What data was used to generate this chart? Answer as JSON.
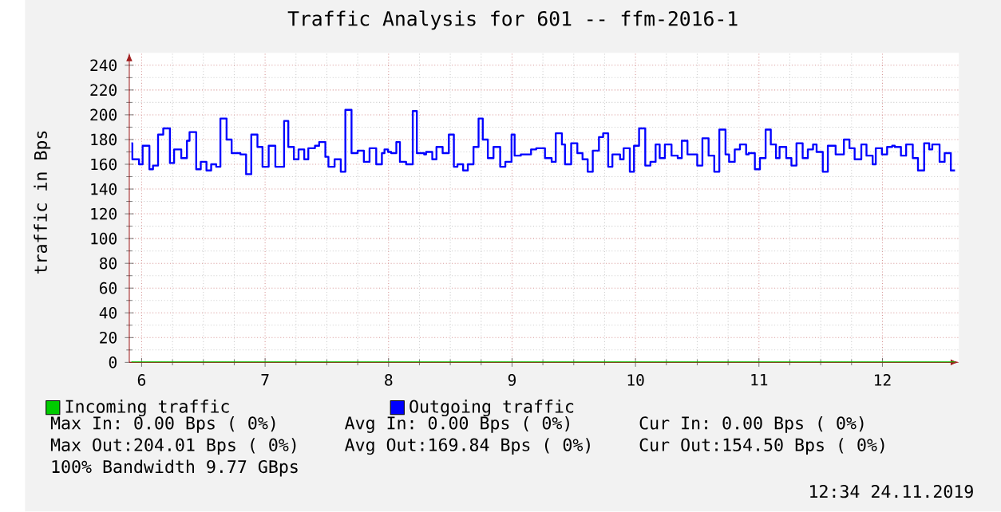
{
  "chart_data": {
    "type": "step",
    "title": "Traffic Analysis for 601 -- ffm-2016-1",
    "ylabel": "traffic in Bps",
    "xlim": [
      5.9,
      12.62
    ],
    "ylim": [
      0,
      250
    ],
    "xticks": [
      6,
      7,
      8,
      9,
      10,
      11,
      12
    ],
    "yticks": [
      0,
      20,
      40,
      60,
      80,
      100,
      120,
      140,
      160,
      180,
      200,
      220,
      240
    ],
    "grid": true,
    "legend": "bottom",
    "series": [
      {
        "name": "Incoming traffic",
        "color": "#00cc00",
        "x": [
          5.917,
          12.588
        ],
        "values": [
          0,
          0
        ]
      },
      {
        "name": "Outgoing traffic",
        "color": "#0000ff",
        "x": [
          5.917,
          5.925,
          5.979,
          6.008,
          6.063,
          6.092,
          6.133,
          6.175,
          6.229,
          6.263,
          6.321,
          6.367,
          6.388,
          6.442,
          6.479,
          6.525,
          6.563,
          6.604,
          6.638,
          6.688,
          6.729,
          6.8,
          6.846,
          6.888,
          6.938,
          6.979,
          7.029,
          7.083,
          7.154,
          7.188,
          7.233,
          7.271,
          7.317,
          7.35,
          7.404,
          7.438,
          7.488,
          7.513,
          7.563,
          7.613,
          7.65,
          7.7,
          7.75,
          7.8,
          7.846,
          7.9,
          7.946,
          7.967,
          7.996,
          8.021,
          8.063,
          8.092,
          8.142,
          8.196,
          8.229,
          8.288,
          8.304,
          8.354,
          8.388,
          8.438,
          8.488,
          8.529,
          8.558,
          8.604,
          8.642,
          8.688,
          8.729,
          8.763,
          8.804,
          8.85,
          8.904,
          8.946,
          8.996,
          9.021,
          9.071,
          9.154,
          9.196,
          9.267,
          9.321,
          9.354,
          9.404,
          9.429,
          9.479,
          9.529,
          9.571,
          9.613,
          9.654,
          9.704,
          9.738,
          9.779,
          9.813,
          9.875,
          9.904,
          9.954,
          9.988,
          10.029,
          10.079,
          10.121,
          10.163,
          10.196,
          10.238,
          10.292,
          10.342,
          10.375,
          10.421,
          10.5,
          10.542,
          10.592,
          10.638,
          10.679,
          10.729,
          10.758,
          10.804,
          10.846,
          10.896,
          10.917,
          10.967,
          11.008,
          11.054,
          11.096,
          11.138,
          11.167,
          11.221,
          11.263,
          11.304,
          11.354,
          11.396,
          11.438,
          11.467,
          11.517,
          11.558,
          11.621,
          11.688,
          11.733,
          11.775,
          11.829,
          11.871,
          11.921,
          11.946,
          11.996,
          12.038,
          12.079,
          12.1,
          12.15,
          12.192,
          12.246,
          12.288,
          12.338,
          12.379,
          12.404,
          12.463,
          12.504,
          12.554,
          12.588
        ],
        "values": [
          177,
          164,
          160,
          175,
          156,
          159,
          184,
          189,
          161,
          172,
          165,
          179,
          186,
          156,
          162,
          155,
          160,
          158,
          197,
          180,
          169,
          168,
          152,
          184,
          174,
          158,
          175,
          158,
          195,
          174,
          164,
          172,
          164,
          173,
          175,
          178,
          166,
          158,
          164,
          154,
          204,
          169,
          171,
          162,
          173,
          160,
          169,
          172,
          170,
          169,
          178,
          162,
          160,
          203,
          169,
          168,
          170,
          164,
          174,
          169,
          184,
          158,
          160,
          155,
          160,
          174,
          197,
          180,
          165,
          174,
          158,
          162,
          184,
          167,
          168,
          172,
          173,
          165,
          162,
          185,
          176,
          160,
          177,
          169,
          164,
          154,
          171,
          182,
          185,
          158,
          168,
          164,
          173,
          154,
          175,
          189,
          159,
          162,
          176,
          165,
          176,
          167,
          165,
          179,
          168,
          159,
          181,
          167,
          154,
          188,
          168,
          162,
          172,
          176,
          168,
          169,
          156,
          165,
          188,
          176,
          165,
          174,
          165,
          159,
          177,
          165,
          172,
          176,
          170,
          154,
          175,
          168,
          180,
          173,
          164,
          176,
          167,
          160,
          173,
          168,
          174,
          175,
          174,
          167,
          176,
          165,
          155,
          177,
          172,
          176,
          162,
          169,
          155,
          155
        ]
      }
    ],
    "annotations": [
      "Max In:   0.00  Bps ( 0%)",
      "Avg In:   0.00  Bps ( 0%)",
      "Cur In:   0.00  Bps ( 0%)",
      "Max Out:204.01  Bps ( 0%)",
      "Avg Out:169.84  Bps ( 0%)",
      "Cur Out:154.50  Bps ( 0%)",
      "100% Bandwidth 9.77 GBps",
      "12:34 24.11.2019"
    ]
  }
}
